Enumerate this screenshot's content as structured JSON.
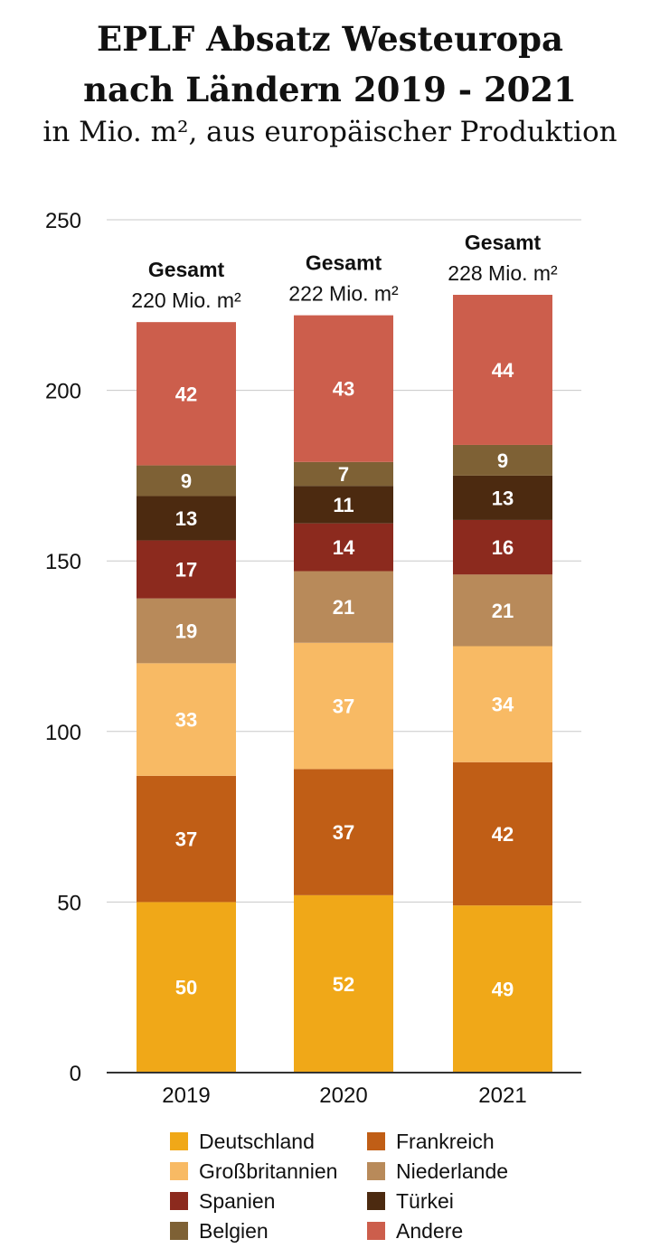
{
  "chart_data": {
    "type": "bar",
    "stacked": true,
    "title_line1": "EPLF Absatz Westeuropa",
    "title_line2": "nach Ländern 2019 -  2021",
    "subtitle": "in Mio. m², aus europäischer Produktion",
    "categories": [
      "2019",
      "2020",
      "2021"
    ],
    "ylim": [
      0,
      250
    ],
    "yticks": [
      0,
      50,
      100,
      150,
      200,
      250
    ],
    "grid": true,
    "series": [
      {
        "name": "Deutschland",
        "color": "#F0A818",
        "values": [
          50,
          52,
          49
        ]
      },
      {
        "name": "Frankreich",
        "color": "#C05E16",
        "values": [
          37,
          37,
          42
        ]
      },
      {
        "name": "Großbritannien",
        "color": "#F8BA64",
        "values": [
          33,
          37,
          34
        ]
      },
      {
        "name": "Niederlande",
        "color": "#B88A5A",
        "values": [
          19,
          21,
          21
        ]
      },
      {
        "name": "Spanien",
        "color": "#8C2A1E",
        "values": [
          17,
          14,
          16
        ]
      },
      {
        "name": "Türkei",
        "color": "#4C2A10",
        "values": [
          13,
          11,
          13
        ]
      },
      {
        "name": "Belgien",
        "color": "#7E6135",
        "values": [
          9,
          7,
          9
        ]
      },
      {
        "name": "Andere",
        "color": "#CC5E4C",
        "values": [
          42,
          43,
          44
        ]
      }
    ],
    "totals": [
      {
        "label": "Gesamt",
        "value": "220 Mio. m²"
      },
      {
        "label": "Gesamt",
        "value": "222 Mio. m²"
      },
      {
        "label": "Gesamt",
        "value": "228 Mio. m²"
      }
    ],
    "legend": [
      "Deutschland",
      "Frankreich",
      "Großbritannien",
      "Niederlande",
      "Spanien",
      "Türkei",
      "Belgien",
      "Andere"
    ]
  }
}
